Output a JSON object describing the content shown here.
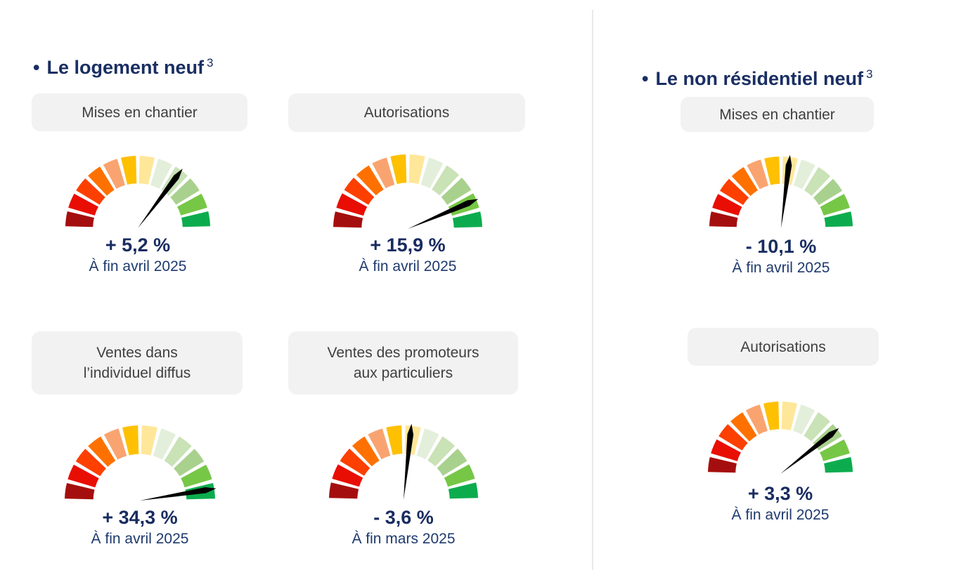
{
  "colors": {
    "title_navy": "#1A2E63",
    "value_navy": "#182C60",
    "date_navy": "#1E3A6E",
    "pill_bg": "#F2F2F2",
    "pill_text": "#3F3F3F",
    "needle": "#000000",
    "divider": "#E9E9E9"
  },
  "sections": [
    {
      "bullet": "•",
      "title": "Le logement neuf",
      "sup": "3"
    },
    {
      "bullet": "•",
      "title": "Le non résidentiel neuf",
      "sup": "3"
    }
  ],
  "gauge_palette": [
    "#A50E0E",
    "#E90E04",
    "#FD3F00",
    "#FE7100",
    "#F9A470",
    "#FEC001",
    "#FEE799",
    "#E3EFDA",
    "#C9E2B6",
    "#A9D18E",
    "#77C746",
    "#0CAC4E"
  ],
  "chart_data": [
    {
      "type": "gauge",
      "section": "Le logement neuf",
      "label": "Mises en chantier",
      "label_lines": [
        "Mises en chantier"
      ],
      "value_label": "+ 5,2 %",
      "value_pct": 5.2,
      "as_of": "À fin avril 2025",
      "needle_angle_from_vertical_deg": 37,
      "scale_segments": 12
    },
    {
      "type": "gauge",
      "section": "Le logement neuf",
      "label": "Autorisations",
      "label_lines": [
        "Autorisations"
      ],
      "value_label": "+ 15,9 %",
      "value_pct": 15.9,
      "as_of": "À fin avril 2025",
      "needle_angle_from_vertical_deg": 67,
      "scale_segments": 12
    },
    {
      "type": "gauge",
      "section": "Le logement neuf",
      "label": "Ventes dans l’individuel diffus",
      "label_lines": [
        "Ventes dans",
        "l’individuel diffus"
      ],
      "value_label": "+ 34,3 %",
      "value_pct": 34.3,
      "as_of": "À fin avril 2025",
      "needle_angle_from_vertical_deg": 81,
      "scale_segments": 12
    },
    {
      "type": "gauge",
      "section": "Le logement neuf",
      "label": "Ventes des promoteurs aux particuliers",
      "label_lines": [
        "Ventes des promoteurs",
        "aux particuliers"
      ],
      "value_label": "- 3,6 %",
      "value_pct": -3.6,
      "as_of": "À fin mars 2025",
      "needle_angle_from_vertical_deg": 6,
      "scale_segments": 12
    },
    {
      "type": "gauge",
      "section": "Le non résidentiel neuf",
      "label": "Mises en chantier",
      "label_lines": [
        "Mises en chantier"
      ],
      "value_label": "- 10,1 %",
      "value_pct": -10.1,
      "as_of": "À fin avril 2025",
      "needle_angle_from_vertical_deg": 7,
      "scale_segments": 12
    },
    {
      "type": "gauge",
      "section": "Le non résidentiel neuf",
      "label": "Autorisations",
      "label_lines": [
        "Autorisations"
      ],
      "value_label": "+ 3,3 %",
      "value_pct": 3.3,
      "as_of": "À fin avril 2025",
      "needle_angle_from_vertical_deg": 52,
      "scale_segments": 12
    }
  ]
}
